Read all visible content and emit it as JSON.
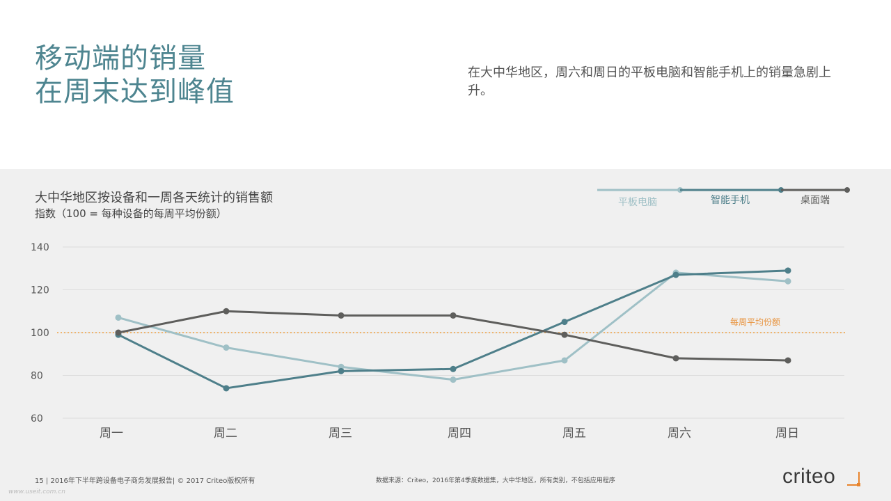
{
  "headline": {
    "line1": "移动端的销量",
    "line2": "在周末达到峰值"
  },
  "description": "在大中华地区，周六和周日的平板电脑和智能手机上的销量急剧上升。",
  "chart_data": {
    "type": "line",
    "title": "大中华地区按设备和一周各天统计的销售额",
    "subtitle": "指数（100 = 每种设备的每周平均份额）",
    "categories": [
      "周一",
      "周二",
      "周三",
      "周四",
      "周五",
      "周六",
      "周日"
    ],
    "yticks": [
      60,
      80,
      100,
      120,
      140
    ],
    "ylim": [
      60,
      140
    ],
    "grid": true,
    "legend_position": "top-right",
    "series": [
      {
        "name": "平板电脑",
        "color": "#9fc0c6",
        "values": [
          107,
          93,
          84,
          78,
          87,
          128,
          124
        ]
      },
      {
        "name": "智能手机",
        "color": "#4e7f8a",
        "values": [
          99,
          74,
          82,
          83,
          105,
          127,
          129
        ]
      },
      {
        "name": "桌面端",
        "color": "#5e5e5c",
        "values": [
          100,
          110,
          108,
          108,
          99,
          88,
          87
        ]
      }
    ],
    "reference_line": {
      "value": 100,
      "label": "每周平均份额",
      "color": "#f0a040"
    }
  },
  "footer": {
    "left": "15 | 2016年下半年跨设备电子商务发展报告| © 2017 Criteo版权所有",
    "source": "数据来源：Criteo，2016年第4季度数据集，大中华地区，所有类别，不包括应用程序"
  },
  "logo": {
    "text": "criteo"
  },
  "watermark": "www.useit.com.cn"
}
